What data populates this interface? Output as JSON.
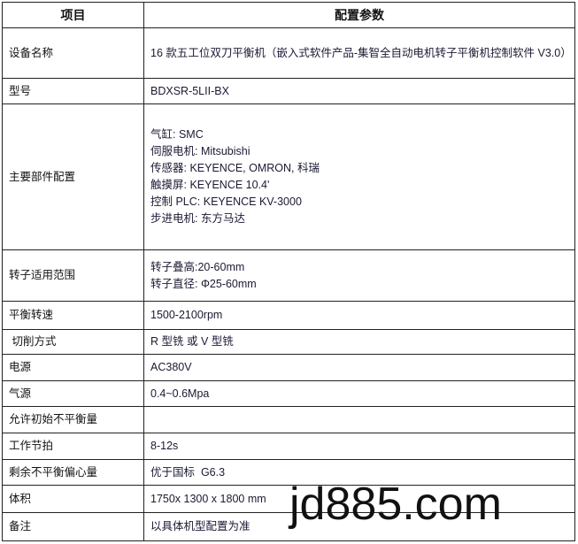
{
  "header": {
    "item": "项目",
    "params": "配置参数"
  },
  "rows": [
    {
      "label": "设备名称",
      "value": [
        "16 款五工位双刀平衡机（嵌入式软件产品-集智全自动电机转子平衡机控制软件 V3.0）"
      ]
    },
    {
      "label": "型号",
      "value": [
        "BDXSR-5LII-BX"
      ]
    },
    {
      "label": "主要部件配置",
      "value": [
        "气缸: SMC",
        "伺服电机: Mitsubishi",
        "传感器: KEYENCE, OMRON, 科瑞",
        "触摸屏: KEYENCE 10.4'",
        "控制 PLC: KEYENCE KV-3000",
        "步进电机: 东方马达"
      ]
    },
    {
      "label": "转子适用范围",
      "value": [
        "转子叠高:20-60mm",
        "转子直径: Φ25-60mm"
      ]
    },
    {
      "label": "平衡转速",
      "value": [
        "1500-2100rpm"
      ]
    },
    {
      "label": " 切削方式",
      "value": [
        "R 型铣 或 V 型铣"
      ]
    },
    {
      "label": "电源",
      "value": [
        "AC380V"
      ]
    },
    {
      "label": "气源",
      "value": [
        "0.4~0.6Mpa"
      ]
    },
    {
      "label": "允许初始不平衡量",
      "value": []
    },
    {
      "label": "工作节拍",
      "value": [
        "8-12s"
      ]
    },
    {
      "label": "剩余不平衡偏心量",
      "value": [
        "优于国标  G6.3"
      ]
    },
    {
      "label": "体积",
      "value": [
        "1750x 1300 x 1800 mm"
      ]
    },
    {
      "label": "备注",
      "value": [
        "以具体机型配置为准"
      ]
    }
  ],
  "watermark": "jd885.com"
}
